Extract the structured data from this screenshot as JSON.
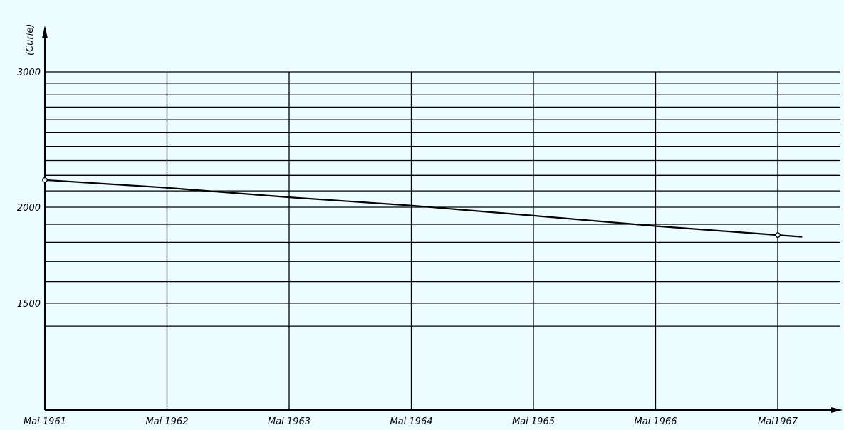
{
  "chart_data": {
    "type": "line",
    "title": "",
    "ylabel": "(Curie)",
    "xlabel": "",
    "y_scale": "log",
    "ylim": [
      1200,
      3000
    ],
    "x": [
      1961.0,
      1962.0,
      1963.0,
      1964.0,
      1965.0,
      1966.0,
      1967.0,
      1967.2
    ],
    "x_tick_values": [
      1961,
      1962,
      1963,
      1964,
      1965,
      1966,
      1967
    ],
    "x_tick_labels": [
      "Mai 1961",
      "Mai 1962",
      "Mai 1963",
      "Mai 1964",
      "Mai 1965",
      "Mai 1966",
      "Mai1967"
    ],
    "y_ticks": [
      3000,
      2000,
      1500
    ],
    "y_tick_labels": [
      "3000",
      "2000",
      "1500"
    ],
    "y_gridlines": [
      1400,
      1500,
      1600,
      1700,
      1800,
      1900,
      2000,
      2100,
      2200,
      2300,
      2400,
      2500,
      2600,
      2700,
      2800,
      2900,
      3000
    ],
    "grid": true,
    "series": [
      {
        "values": [
          2170,
          2120,
          2060,
          2010,
          1950,
          1890,
          1840,
          1830
        ],
        "marked_points": [
          0,
          6
        ]
      }
    ]
  }
}
